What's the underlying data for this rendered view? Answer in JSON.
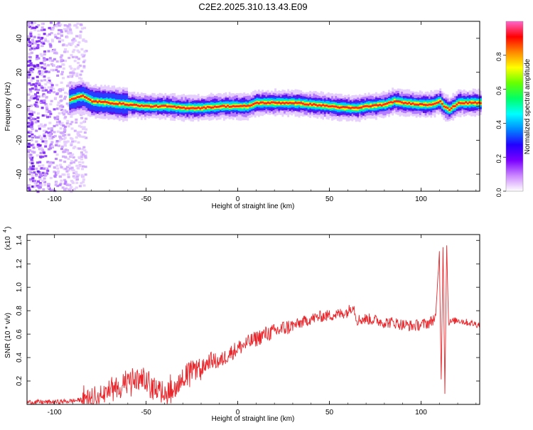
{
  "title": "C2E2.2025.310.13.43.E09",
  "colors": {
    "line": "#e8262b",
    "axis": "#000000",
    "spectrogram_ramp": [
      "#ffffff",
      "#cc88ff",
      "#7a00ff",
      "#2200ff",
      "#0088ff",
      "#00ffff",
      "#00ff66",
      "#66ff00",
      "#ffff00",
      "#ff8800",
      "#ff0000",
      "#ff66cc"
    ]
  },
  "colorbar": {
    "label": "Normalized spectral amplitude",
    "ticks": [
      "0.0",
      "0.2",
      "0.4",
      "0.6",
      "0.8"
    ]
  },
  "chart_data": [
    {
      "type": "heatmap",
      "title": "C2E2.2025.310.13.43.E09",
      "xlabel": "Height of straight line (km)",
      "ylabel": "Frequency (Hz)",
      "xlim": [
        -115,
        132
      ],
      "ylim": [
        -50,
        50
      ],
      "x_ticks": [
        "-100",
        "-50",
        "0",
        "50",
        "100"
      ],
      "y_ticks": [
        "-40",
        "-20",
        "0",
        "20",
        "40"
      ],
      "colorbar_range": [
        0,
        1
      ],
      "noise_region_x": [
        -115,
        -88
      ],
      "ridge": {
        "x": [
          -92,
          -85,
          -80,
          -70,
          -60,
          -50,
          -40,
          -30,
          -20,
          -10,
          0,
          5,
          10,
          20,
          30,
          40,
          50,
          60,
          65,
          70,
          80,
          85,
          90,
          100,
          105,
          110,
          112,
          115,
          120,
          132
        ],
        "freq": [
          4,
          6,
          3,
          2,
          1,
          0,
          0,
          -1,
          -1,
          0,
          0,
          0,
          2,
          2,
          2,
          1,
          0,
          -1,
          -1,
          0,
          1,
          3,
          2,
          1,
          1,
          3,
          0,
          -2,
          2,
          2
        ]
      }
    },
    {
      "type": "line",
      "xlabel": "Height of straight line (km)",
      "ylabel": "SNR (10 * v/v)",
      "scale_label": "(x10",
      "scale_exponent": "4",
      "xlim": [
        -115,
        132
      ],
      "ylim": [
        0,
        1.45
      ],
      "x_ticks": [
        "-100",
        "-50",
        "0",
        "50",
        "100"
      ],
      "y_ticks": [
        "0.2",
        "0.4",
        "0.6",
        "0.8",
        "1.0",
        "1.2",
        "1.4"
      ],
      "series": [
        {
          "name": "SNR",
          "x": [
            -115,
            -100,
            -90,
            -85,
            -80,
            -75,
            -70,
            -65,
            -60,
            -55,
            -50,
            -45,
            -40,
            -35,
            -30,
            -25,
            -20,
            -15,
            -10,
            -5,
            0,
            5,
            10,
            15,
            20,
            25,
            30,
            35,
            40,
            45,
            50,
            55,
            60,
            63,
            65,
            70,
            75,
            80,
            85,
            90,
            95,
            100,
            105,
            108,
            110,
            111,
            112,
            113,
            114,
            115,
            120,
            125,
            132
          ],
          "values": [
            0.02,
            0.02,
            0.03,
            0.04,
            0.06,
            0.09,
            0.13,
            0.16,
            0.18,
            0.21,
            0.19,
            0.14,
            0.12,
            0.14,
            0.24,
            0.28,
            0.3,
            0.38,
            0.36,
            0.43,
            0.48,
            0.52,
            0.56,
            0.6,
            0.62,
            0.65,
            0.67,
            0.7,
            0.73,
            0.75,
            0.76,
            0.77,
            0.79,
            0.85,
            0.72,
            0.73,
            0.72,
            0.7,
            0.7,
            0.68,
            0.67,
            0.68,
            0.7,
            0.75,
            1.3,
            0.2,
            1.36,
            0.1,
            1.35,
            0.7,
            0.72,
            0.7,
            0.68
          ]
        }
      ]
    }
  ]
}
